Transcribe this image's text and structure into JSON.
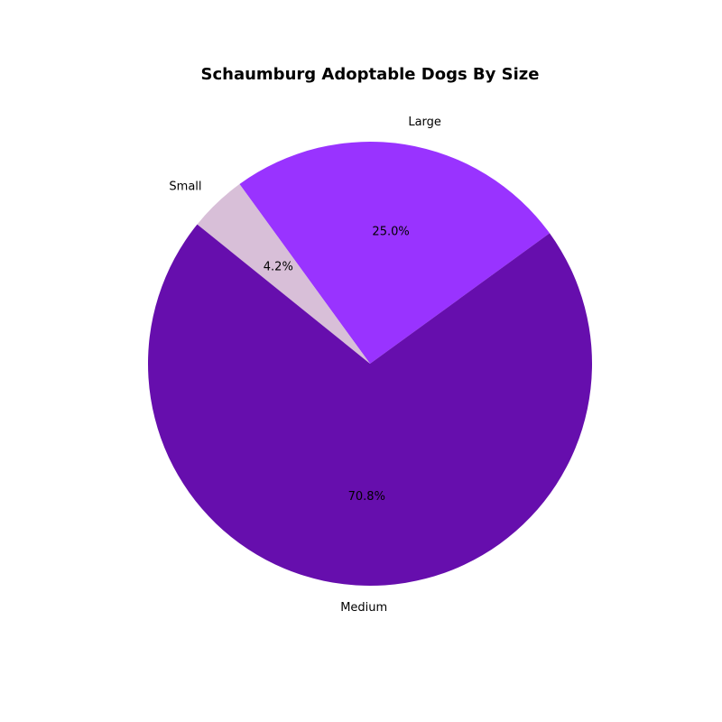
{
  "chart_data": {
    "type": "pie",
    "title": "Schaumburg Adoptable Dogs By Size",
    "slices": [
      {
        "label": "Large",
        "value": 25.0,
        "pct_label": "25.0%",
        "color": "#9933ff"
      },
      {
        "label": "Small",
        "value": 4.2,
        "pct_label": "4.2%",
        "color": "#d8bfd8"
      },
      {
        "label": "Medium",
        "value": 70.8,
        "pct_label": "70.8%",
        "color": "#660ead"
      }
    ],
    "start_angle_deg": 36.0,
    "direction": "counterclockwise",
    "legend": "none"
  }
}
